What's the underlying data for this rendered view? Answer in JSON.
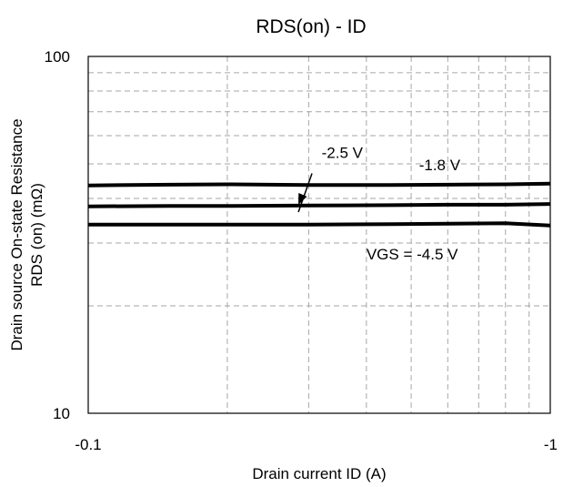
{
  "chart_data": {
    "type": "line",
    "title": "RDS(on) - ID",
    "xlabel": "Drain current ID (A)",
    "ylabel_line1": "Drain source On-state Resistance",
    "ylabel_line2": "RDS (on) (mΩ)",
    "x_scale": "log",
    "y_scale": "log",
    "xlim": [
      0.1,
      1
    ],
    "ylim": [
      10,
      100
    ],
    "x_ticks": [
      {
        "value": 0.1,
        "label": "-0.1"
      },
      {
        "value": 1,
        "label": "-1"
      }
    ],
    "y_ticks": [
      {
        "value": 10,
        "label": "10"
      },
      {
        "value": 100,
        "label": "100"
      }
    ],
    "grid": true,
    "series": [
      {
        "name": "-1.8 V",
        "x": [
          0.1,
          0.15,
          0.2,
          0.3,
          0.45,
          0.6,
          0.8,
          1.0
        ],
        "y": [
          43.5,
          43.7,
          43.8,
          43.6,
          43.6,
          43.7,
          43.8,
          44.0
        ]
      },
      {
        "name": "-2.5 V",
        "x": [
          0.1,
          0.15,
          0.2,
          0.3,
          0.45,
          0.6,
          0.8,
          1.0
        ],
        "y": [
          38.0,
          38.1,
          38.1,
          38.2,
          38.3,
          38.4,
          38.4,
          38.6
        ]
      },
      {
        "name": "VGS = -4.5 V",
        "x": [
          0.1,
          0.15,
          0.2,
          0.3,
          0.45,
          0.6,
          0.8,
          1.0
        ],
        "y": [
          33.8,
          33.8,
          33.8,
          33.8,
          33.9,
          34.0,
          34.1,
          33.6
        ]
      }
    ],
    "annotations": [
      {
        "text": "-2.5 V",
        "x": 0.32,
        "y": 52
      },
      {
        "text": "-1.8 V",
        "x": 0.52,
        "y": 48
      },
      {
        "text": "VGS = -4.5 V",
        "x": 0.4,
        "y": 27.0
      }
    ],
    "arrow": {
      "from_x": 0.305,
      "from_y": 47.0,
      "to_x": 0.285,
      "to_y": 38.4
    }
  }
}
